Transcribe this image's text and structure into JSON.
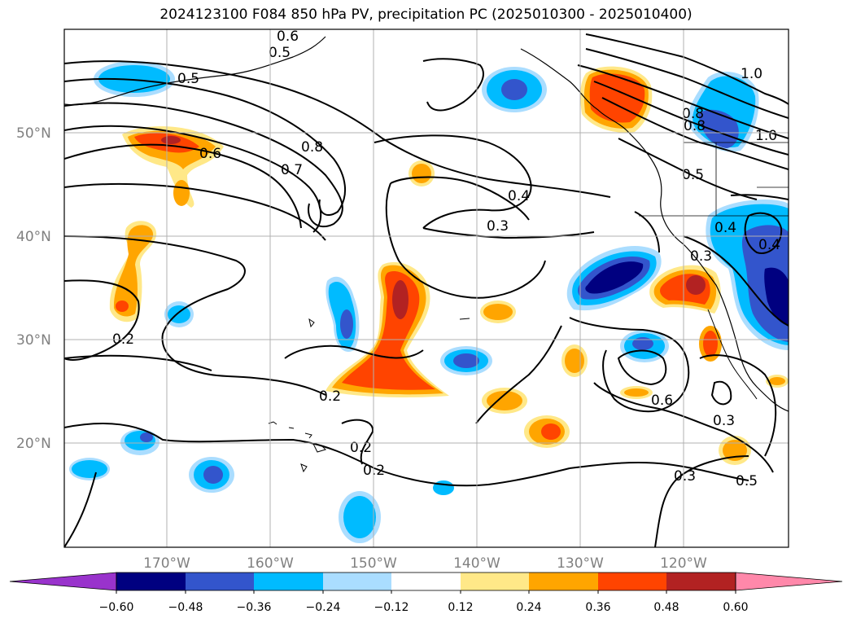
{
  "title": "2024123100 F084 850 hPa PV, precipitation PC (2025010300 - 2025010400)",
  "map": {
    "lat_ticks": [
      "50°N",
      "40°N",
      "30°N",
      "20°N"
    ],
    "lon_ticks": [
      "170°W",
      "160°W",
      "150°W",
      "140°W",
      "130°W",
      "120°W"
    ],
    "contour_labels": [
      "0.5",
      "0.5",
      "0.6",
      "0.6",
      "0.8",
      "0.7",
      "0.4",
      "0.3",
      "0.2",
      "0.2",
      "0.2",
      "0.2",
      "1.0",
      "1.0",
      "0.8",
      "0.8",
      "0.5",
      "0.4",
      "0.4",
      "0.3",
      "0.6",
      "0.3",
      "0.3",
      "0.5"
    ]
  },
  "colorbar": {
    "ticks": [
      "−0.60",
      "−0.48",
      "−0.36",
      "−0.24",
      "−0.12",
      "0.12",
      "0.24",
      "0.36",
      "0.48",
      "0.60"
    ],
    "colors": [
      "#9933cc",
      "#000080",
      "#3355cc",
      "#00bbff",
      "#aaddff",
      "#ffffff",
      "#ffe888",
      "#ffa500",
      "#ff4400",
      "#b22222",
      "#ff88aa"
    ]
  }
}
